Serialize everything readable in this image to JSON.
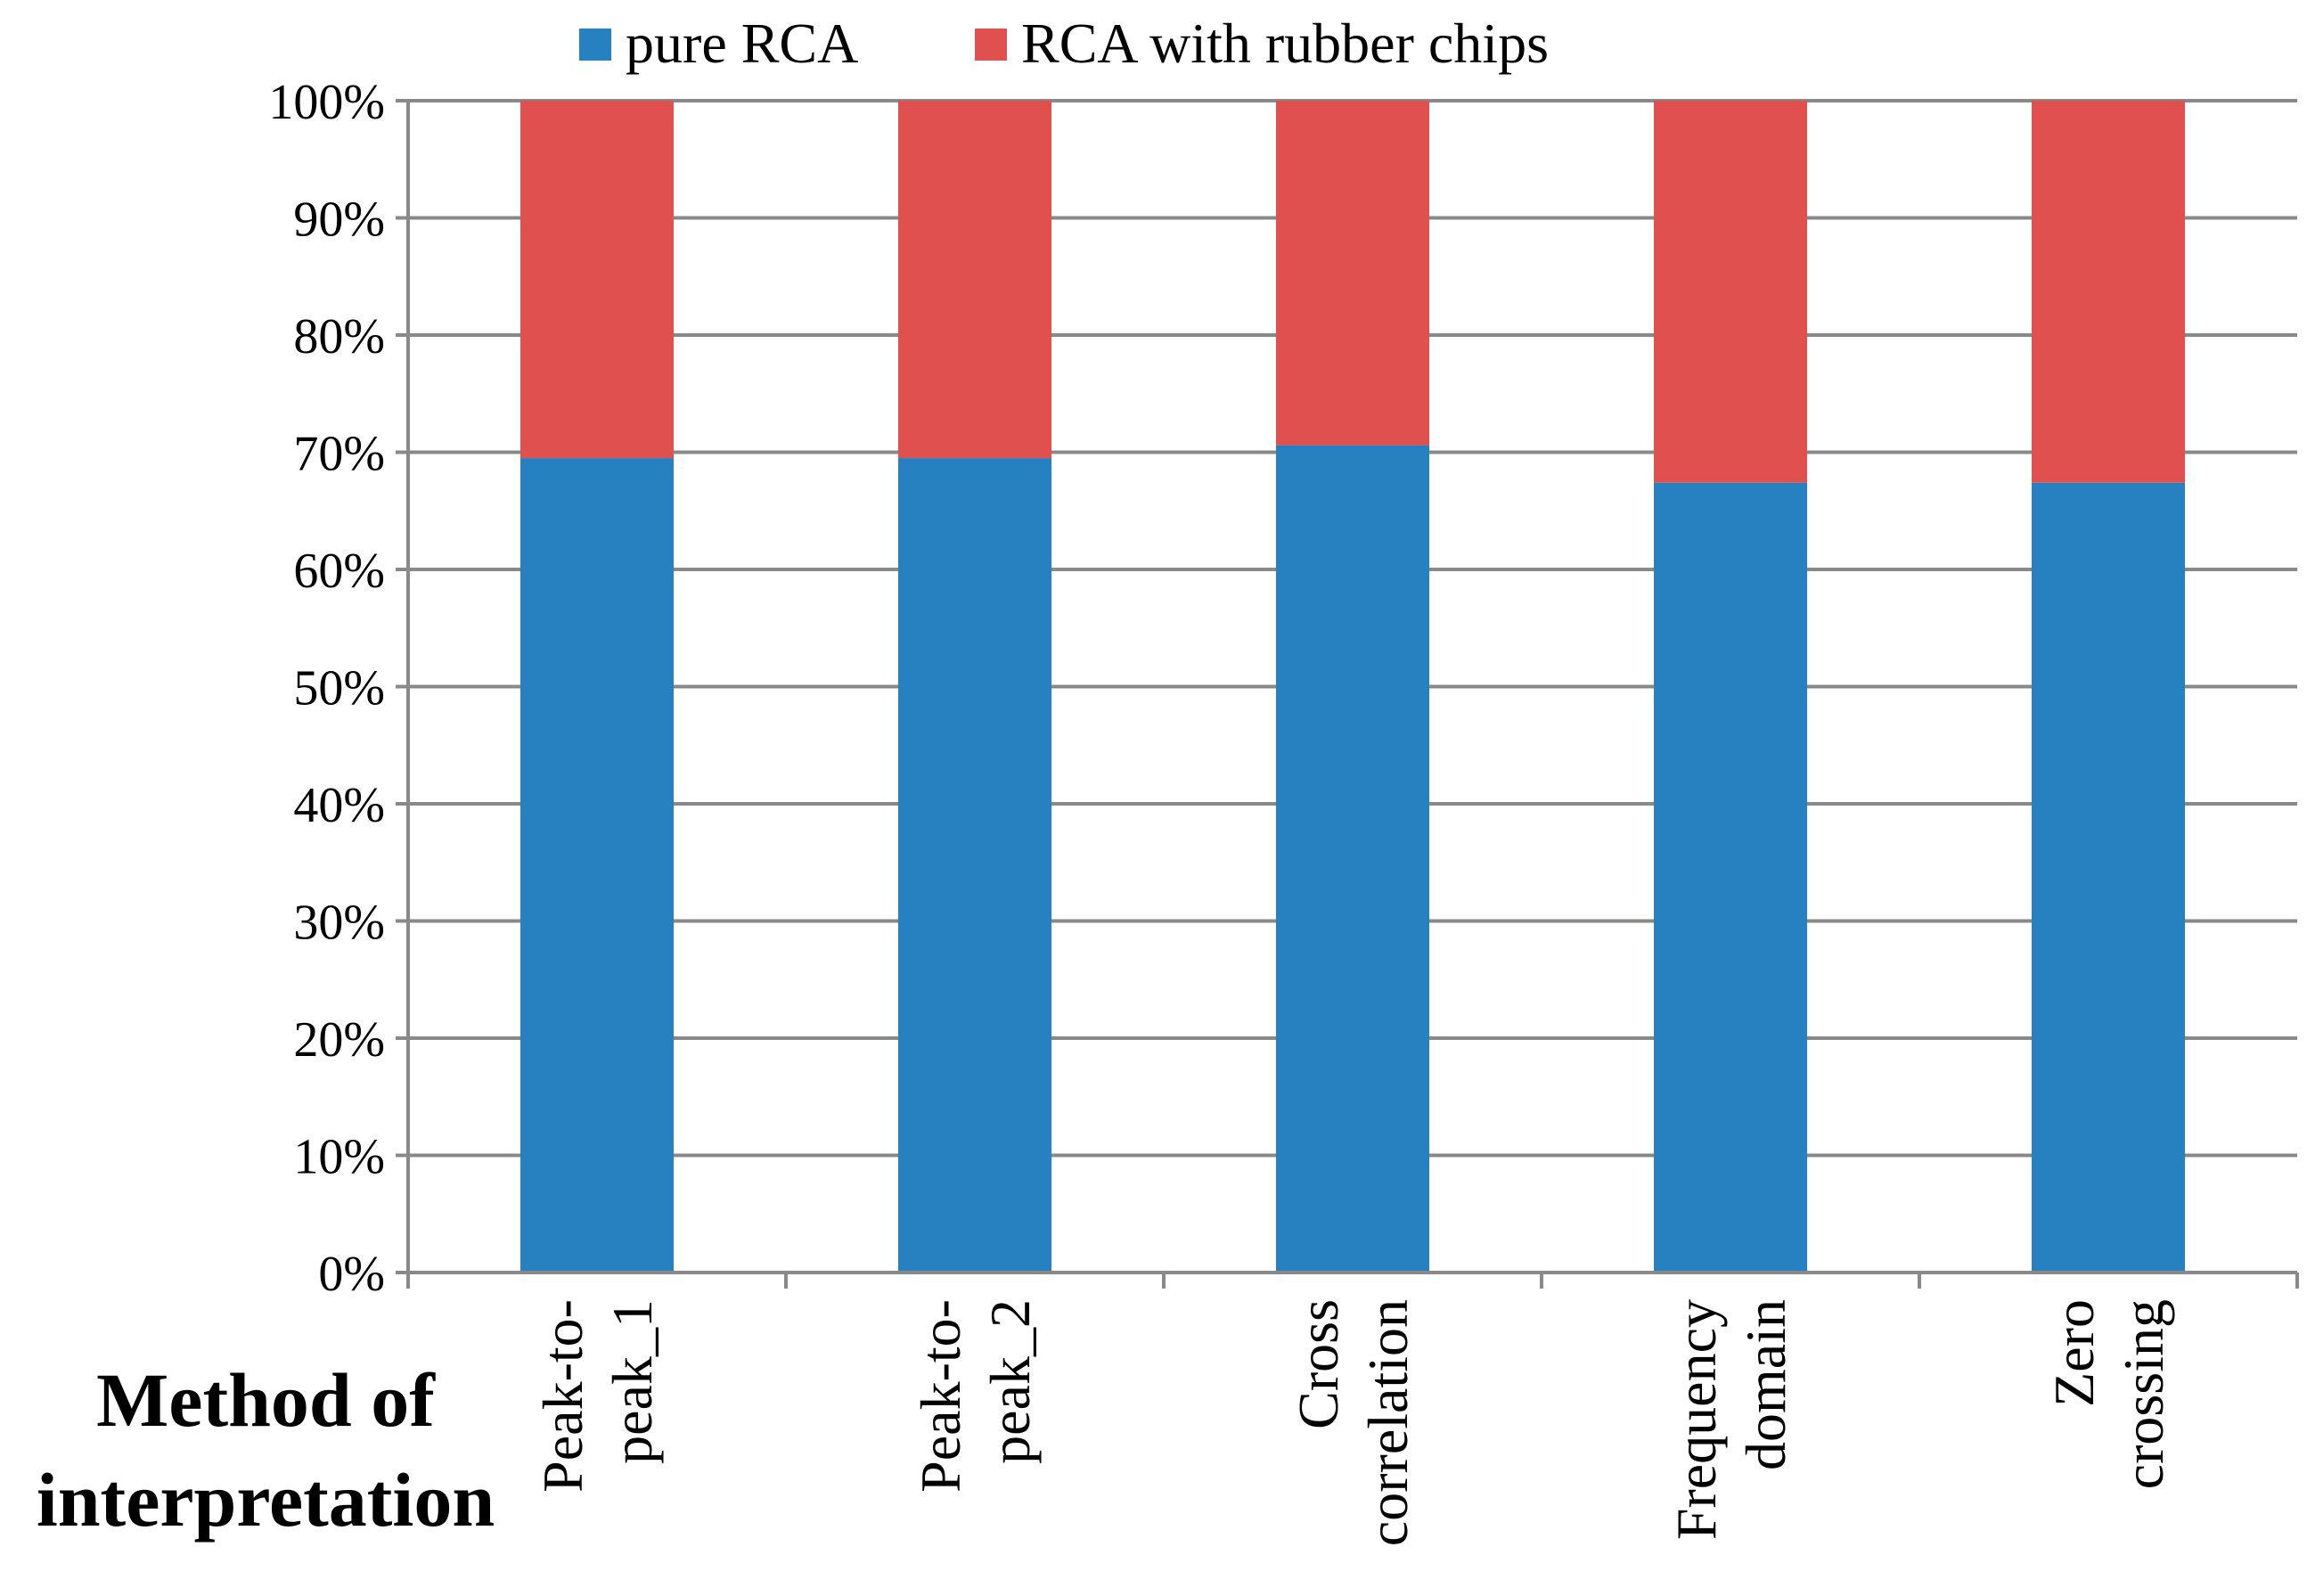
{
  "chart_data": {
    "type": "bar",
    "stacked": true,
    "percent_stacked": true,
    "title": "",
    "xlabel": "Method of interpretation",
    "ylabel": "",
    "ylim": [
      0,
      100
    ],
    "yticks": [
      "0%",
      "10%",
      "20%",
      "30%",
      "40%",
      "50%",
      "60%",
      "70%",
      "80%",
      "90%",
      "100%"
    ],
    "categories": [
      "Peak-to-peak_1",
      "Peak-to-peak_2",
      "Cross correlation",
      "Frequency domain",
      "Zero crossing"
    ],
    "category_lines": [
      [
        "Peak-to-",
        "peak_1"
      ],
      [
        "Peak-to-",
        "peak_2"
      ],
      [
        "Cross",
        "correlation"
      ],
      [
        "Frequency",
        "domain"
      ],
      [
        "Zero",
        "crossing"
      ]
    ],
    "series": [
      {
        "name": "pure RCA",
        "color": "#2781C0",
        "values": [
          69.5,
          69.5,
          70.6,
          67.4,
          67.4
        ]
      },
      {
        "name": "RCA with rubber chips",
        "color": "#E0504E",
        "values": [
          30.5,
          30.5,
          29.4,
          32.6,
          32.6
        ]
      }
    ],
    "legend": "top",
    "grid": true,
    "gridline_color": "#898989"
  }
}
